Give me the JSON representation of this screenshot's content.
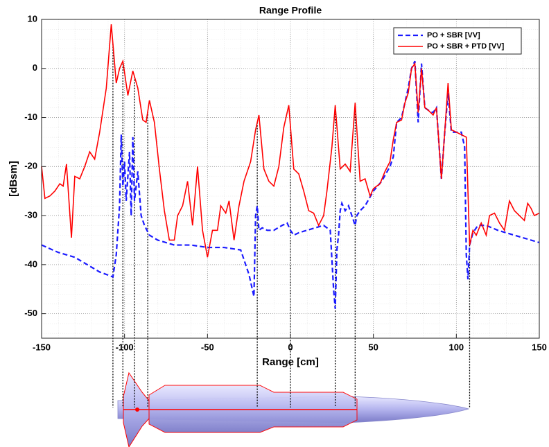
{
  "chart_data": {
    "type": "line",
    "title": "Range Profile",
    "xlabel": "Range [cm]",
    "ylabel": "[dBsm]",
    "xlim": [
      -150,
      150
    ],
    "xticks": [
      -150,
      -100,
      -50,
      0,
      50,
      100,
      150
    ],
    "ylim": [
      -55,
      10
    ],
    "yticks": [
      -50,
      -40,
      -30,
      -20,
      -10,
      0,
      10
    ],
    "grid": true,
    "minor_grid": true,
    "legend": "northeast",
    "series": [
      {
        "name": "PO + SBR [VV]",
        "color": "#1a1aff",
        "dash": true,
        "x": [
          -150,
          -140,
          -130,
          -120,
          -115,
          -107,
          -105,
          -103,
          -102,
          -101,
          -100,
          -99,
          -97,
          -96,
          -95,
          -94,
          -92,
          -90,
          -88,
          -85,
          -80,
          -70,
          -60,
          -50,
          -40,
          -30,
          -28,
          -25,
          -22,
          -21,
          -20,
          -19,
          -17,
          -14,
          -10,
          -5,
          -2,
          0,
          2,
          5,
          10,
          15,
          20,
          24,
          25,
          26,
          27,
          28,
          29,
          30,
          31,
          33,
          35,
          37,
          39,
          40,
          42,
          45,
          50,
          55,
          60,
          62,
          64,
          67,
          69,
          71,
          73,
          75,
          77,
          79,
          81,
          83,
          86,
          88,
          91,
          93,
          95,
          97,
          100,
          103,
          105,
          106,
          107,
          108,
          110,
          113,
          118,
          125,
          135,
          150
        ],
        "values": [
          -36,
          -37.5,
          -38.5,
          -40.5,
          -41.5,
          -42.5,
          -38,
          -28,
          -13.5,
          -24,
          -19,
          -27,
          -17,
          -30,
          -14,
          -27,
          -21,
          -30,
          -32,
          -34,
          -35,
          -36,
          -36,
          -36.5,
          -36.5,
          -37,
          -39,
          -42,
          -46.5,
          -30,
          -28,
          -33,
          -32.5,
          -33,
          -33,
          -32,
          -31.5,
          -33,
          -34,
          -33.5,
          -33,
          -32.5,
          -32,
          -33,
          -39,
          -45,
          -49,
          -37,
          -34,
          -29,
          -27.5,
          -29,
          -28,
          -30,
          -32,
          -30,
          -29,
          -28,
          -25,
          -23,
          -20,
          -18,
          -11,
          -10,
          -7,
          -4,
          0,
          1.5,
          -11,
          1,
          -8,
          -8.5,
          -9,
          -8,
          -22.5,
          -13,
          -5,
          -13,
          -13,
          -13,
          -16,
          -38,
          -43,
          -36,
          -33.5,
          -32,
          -32,
          -33,
          -34,
          -35.5
        ]
      },
      {
        "name": "PO + SBR + PTD [VV]",
        "color": "#ff0000",
        "dash": false,
        "x": [
          -150,
          -148,
          -145,
          -142,
          -139,
          -137,
          -135,
          -132,
          -130,
          -127,
          -124,
          -121,
          -118,
          -115,
          -111,
          -108,
          -105,
          -103,
          -101,
          -98,
          -95,
          -92,
          -89,
          -87,
          -85,
          -82,
          -79,
          -76,
          -73,
          -70,
          -68,
          -65,
          -62,
          -59,
          -56,
          -53,
          -50,
          -47,
          -44,
          -42,
          -39,
          -37,
          -34,
          -31,
          -28,
          -24,
          -21,
          -19,
          -16,
          -13,
          -10,
          -7,
          -4,
          -1,
          2,
          5,
          8,
          11,
          14,
          17,
          20,
          22,
          25,
          27,
          30,
          33,
          36,
          39,
          42,
          45,
          48,
          50,
          54,
          57,
          60,
          62,
          64,
          67,
          69,
          71,
          73,
          75,
          77,
          79,
          81,
          83,
          86,
          88,
          91,
          93,
          95,
          97,
          100,
          103,
          106,
          108,
          110,
          112,
          115,
          118,
          120,
          123,
          126,
          129,
          132,
          135,
          138,
          141,
          143,
          145,
          147,
          150
        ],
        "values": [
          -20,
          -26.5,
          -26,
          -25,
          -23.5,
          -24,
          -19.5,
          -34.5,
          -22,
          -22.5,
          -20,
          -17,
          -18.5,
          -13,
          -4,
          9,
          -3,
          0,
          1.5,
          -5.5,
          -0.5,
          -4,
          -10.5,
          -11,
          -6.5,
          -11,
          -20.5,
          -29,
          -35,
          -35,
          -30,
          -28,
          -23,
          -32,
          -20,
          -33,
          -38.5,
          -33,
          -33,
          -28,
          -29.5,
          -27,
          -35,
          -28,
          -23,
          -19,
          -12.5,
          -9.5,
          -20.5,
          -23,
          -24,
          -20,
          -12,
          -7.5,
          -20.5,
          -21.5,
          -25,
          -29,
          -29.5,
          -32,
          -30,
          -25,
          -16,
          -7.5,
          -20.5,
          -19.5,
          -21,
          -7,
          -23,
          -22.5,
          -26,
          -24.5,
          -23.5,
          -21,
          -19,
          -14.5,
          -11,
          -10.5,
          -7,
          -5,
          0,
          1,
          -9,
          0,
          -8,
          -8.5,
          -9.5,
          -8,
          -22.5,
          -13,
          -3,
          -12.5,
          -13,
          -13.5,
          -14,
          -36,
          -33,
          -34,
          -31.5,
          -34,
          -30,
          -29.5,
          -31.5,
          -33,
          -27,
          -29,
          -30,
          -31,
          -27.5,
          -28.5,
          -30,
          -29.5
        ]
      }
    ],
    "guide_lines_x": [
      -107,
      -101,
      -94,
      -86,
      -20,
      0,
      27,
      39,
      108
    ]
  }
}
